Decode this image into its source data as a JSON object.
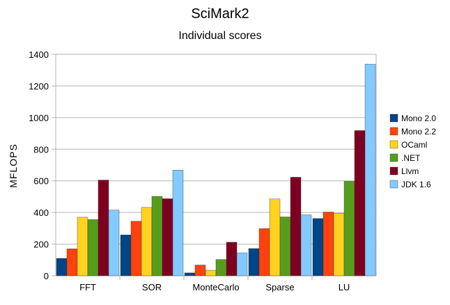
{
  "chart_data": {
    "type": "bar",
    "title": "SciMark2",
    "subtitle": "Individual scores",
    "xlabel": "",
    "ylabel": "MFLOPS",
    "ylim": [
      0,
      1400
    ],
    "yticks": [
      0,
      200,
      400,
      600,
      800,
      1000,
      1200,
      1400
    ],
    "grid": true,
    "legend_position": "right",
    "categories": [
      "FFT",
      "SOR",
      "MonteCarlo",
      "Sparse",
      "LU"
    ],
    "series": [
      {
        "name": "Mono 2.0",
        "color": "#004586",
        "values": [
          110,
          258,
          18,
          172,
          362
        ]
      },
      {
        "name": "Mono 2.2",
        "color": "#ff420e",
        "values": [
          170,
          345,
          68,
          298,
          403
        ]
      },
      {
        "name": "OCaml",
        "color": "#ffd320",
        "values": [
          370,
          432,
          35,
          485,
          395
        ]
      },
      {
        "name": ".NET",
        "color": "#579d1c",
        "values": [
          355,
          502,
          103,
          372,
          597
        ]
      },
      {
        "name": "Llvm",
        "color": "#7e0021",
        "values": [
          605,
          487,
          212,
          623,
          918
        ]
      },
      {
        "name": "JDK 1.6",
        "color": "#83caff",
        "values": [
          415,
          668,
          145,
          385,
          1338
        ]
      }
    ]
  }
}
